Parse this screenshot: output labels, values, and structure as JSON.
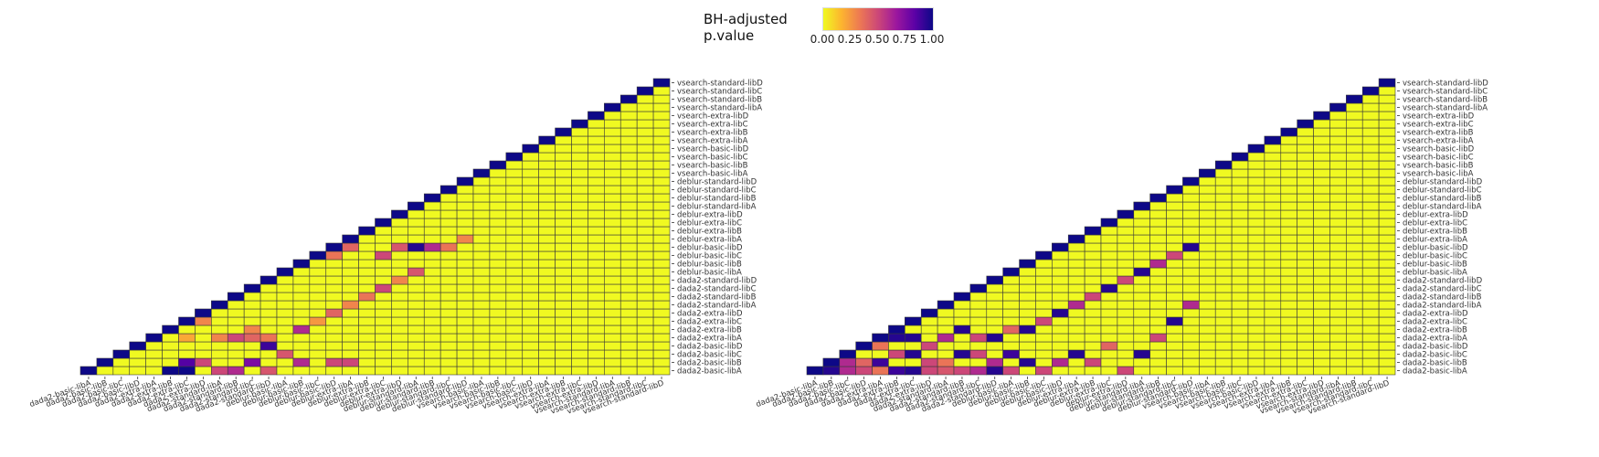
{
  "legend": {
    "title_line1": "BH-adjusted",
    "title_line2": "p.value",
    "ticks": [
      "0.00",
      "0.25",
      "0.50",
      "0.75",
      "1.00"
    ],
    "color_scale": [
      "#f0f921",
      "#fdb42f",
      "#ed7953",
      "#cc4778",
      "#9c179e",
      "#5c01a6",
      "#0d0887"
    ]
  },
  "chart_data": [
    {
      "type": "heatmap",
      "layout": "lower-triangular",
      "labels": [
        "dada2-basic-libA",
        "dada2-basic-libB",
        "dada2-basic-libC",
        "dada2-basic-libD",
        "dada2-extra-libA",
        "dada2-extra-libB",
        "dada2-extra-libC",
        "dada2-extra-libD",
        "dada2-standard-libA",
        "dada2-standard-libB",
        "dada2-standard-libC",
        "dada2-standard-libD",
        "deblur-basic-libA",
        "deblur-basic-libB",
        "deblur-basic-libC",
        "deblur-basic-libD",
        "deblur-extra-libA",
        "deblur-extra-libB",
        "deblur-extra-libC",
        "deblur-extra-libD",
        "deblur-standard-libA",
        "deblur-standard-libB",
        "deblur-standard-libC",
        "deblur-standard-libD",
        "vsearch-basic-libA",
        "vsearch-basic-libB",
        "vsearch-basic-libC",
        "vsearch-basic-libD",
        "vsearch-extra-libA",
        "vsearch-extra-libB",
        "vsearch-extra-libC",
        "vsearch-extra-libD",
        "vsearch-standard-libA",
        "vsearch-standard-libB",
        "vsearch-standard-libC",
        "vsearch-standard-libD"
      ],
      "diagonal_value": 1.0,
      "default_value": 0.0,
      "cells": [
        [
          5,
          0,
          1.0
        ],
        [
          6,
          0,
          1.0
        ],
        [
          6,
          1,
          0.85
        ],
        [
          7,
          1,
          0.5
        ],
        [
          8,
          0,
          0.5
        ],
        [
          9,
          0,
          0.6
        ],
        [
          10,
          1,
          0.75
        ],
        [
          11,
          0,
          0.45
        ],
        [
          11,
          3,
          0.9
        ],
        [
          10,
          4,
          0.4
        ],
        [
          9,
          4,
          0.5
        ],
        [
          8,
          4,
          0.3
        ],
        [
          11,
          4,
          0.35
        ],
        [
          10,
          5,
          0.3
        ],
        [
          6,
          4,
          0.2
        ],
        [
          7,
          6,
          0.3
        ],
        [
          13,
          1,
          0.6
        ],
        [
          12,
          2,
          0.45
        ],
        [
          15,
          1,
          0.5
        ],
        [
          16,
          1,
          0.5
        ],
        [
          13,
          5,
          0.6
        ],
        [
          14,
          6,
          0.25
        ],
        [
          15,
          7,
          0.4
        ],
        [
          16,
          8,
          0.3
        ],
        [
          17,
          9,
          0.35
        ],
        [
          18,
          10,
          0.5
        ],
        [
          19,
          11,
          0.3
        ],
        [
          20,
          12,
          0.45
        ],
        [
          9,
          12,
          0.4
        ],
        [
          7,
          12,
          0.35
        ],
        [
          11,
          13,
          0.95
        ],
        [
          12,
          13,
          0.3
        ],
        [
          15,
          14,
          0.35
        ],
        [
          16,
          15,
          0.4
        ],
        [
          18,
          14,
          0.5
        ],
        [
          19,
          15,
          0.45
        ],
        [
          20,
          15,
          0.95
        ],
        [
          21,
          15,
          0.6
        ],
        [
          22,
          15,
          0.35
        ],
        [
          23,
          16,
          0.3
        ],
        [
          10,
          17,
          0.95
        ],
        [
          11,
          17,
          0.45
        ],
        [
          9,
          18,
          0.5
        ],
        [
          8,
          17,
          0.3
        ],
        [
          13,
          18,
          0.95
        ],
        [
          14,
          18,
          0.5
        ],
        [
          18,
          19,
          0.3
        ],
        [
          19,
          20,
          0.6
        ],
        [
          20,
          20,
          0.5
        ],
        [
          10,
          20,
          0.3
        ],
        [
          21,
          21,
          0.9
        ],
        [
          22,
          23,
          0.5
        ],
        [
          23,
          24,
          0.5
        ],
        [
          24,
          25,
          0.8
        ],
        [
          17,
          24,
          0.5
        ],
        [
          18,
          25,
          0.9
        ],
        [
          19,
          24,
          0.35
        ],
        [
          20,
          25,
          0.3
        ],
        [
          9,
          28,
          0.4
        ],
        [
          11,
          28,
          0.5
        ],
        [
          12,
          28,
          0.3
        ],
        [
          14,
          28,
          0.5
        ],
        [
          16,
          28,
          0.6
        ],
        [
          18,
          29,
          0.3
        ],
        [
          20,
          29,
          0.95
        ],
        [
          21,
          29,
          0.35
        ],
        [
          22,
          29,
          0.5
        ],
        [
          23,
          29,
          0.3
        ],
        [
          6,
          29,
          0.4
        ],
        [
          7,
          29,
          0.6
        ],
        [
          5,
          30,
          0.35
        ],
        [
          4,
          30,
          0.3
        ],
        [
          8,
          31,
          0.35
        ],
        [
          9,
          31,
          0.4
        ],
        [
          10,
          31,
          0.3
        ],
        [
          11,
          30,
          0.35
        ],
        [
          25,
          35,
          0.6
        ],
        [
          26,
          35,
          0.5
        ],
        [
          28,
          33,
          0.4
        ],
        [
          29,
          33,
          0.45
        ],
        [
          30,
          32,
          0.3
        ],
        [
          31,
          35,
          0.9
        ],
        [
          32,
          35,
          0.95
        ],
        [
          33,
          35,
          0.85
        ],
        [
          34,
          35,
          0.3
        ],
        [
          0,
          35,
          0.95
        ],
        [
          1,
          35,
          0.9
        ]
      ]
    },
    {
      "type": "heatmap",
      "layout": "lower-triangular",
      "labels": [
        "dada2-basic-libA",
        "dada2-basic-libB",
        "dada2-basic-libC",
        "dada2-basic-libD",
        "dada2-extra-libA",
        "dada2-extra-libB",
        "dada2-extra-libC",
        "dada2-extra-libD",
        "dada2-standard-libA",
        "dada2-standard-libB",
        "dada2-standard-libC",
        "dada2-standard-libD",
        "deblur-basic-libA",
        "deblur-basic-libB",
        "deblur-basic-libC",
        "deblur-basic-libD",
        "deblur-extra-libA",
        "deblur-extra-libB",
        "deblur-extra-libC",
        "deblur-extra-libD",
        "deblur-standard-libA",
        "deblur-standard-libB",
        "deblur-standard-libC",
        "deblur-standard-libD",
        "vsearch-basic-libA",
        "vsearch-basic-libB",
        "vsearch-basic-libC",
        "vsearch-basic-libD",
        "vsearch-extra-libA",
        "vsearch-extra-libB",
        "vsearch-extra-libC",
        "vsearch-extra-libD",
        "vsearch-standard-libA",
        "vsearch-standard-libB",
        "vsearch-standard-libC",
        "vsearch-standard-libD"
      ],
      "diagonal_value": 1.0,
      "default_value": 0.0,
      "cells": [
        [
          1,
          0,
          0.95
        ],
        [
          2,
          0,
          0.6
        ],
        [
          3,
          0,
          0.5
        ],
        [
          4,
          0,
          0.35
        ],
        [
          5,
          0,
          0.9
        ],
        [
          6,
          0,
          0.95
        ],
        [
          7,
          0,
          0.5
        ],
        [
          8,
          0,
          0.45
        ],
        [
          9,
          0,
          0.5
        ],
        [
          10,
          0,
          0.6
        ],
        [
          11,
          0,
          0.95
        ],
        [
          12,
          0,
          0.5
        ],
        [
          2,
          1,
          0.6
        ],
        [
          3,
          1,
          0.4
        ],
        [
          4,
          1,
          0.9
        ],
        [
          5,
          2,
          0.5
        ],
        [
          6,
          2,
          0.95
        ],
        [
          7,
          1,
          0.5
        ],
        [
          8,
          1,
          0.35
        ],
        [
          9,
          2,
          0.95
        ],
        [
          10,
          2,
          0.5
        ],
        [
          11,
          1,
          0.6
        ],
        [
          12,
          2,
          0.9
        ],
        [
          4,
          3,
          0.35
        ],
        [
          5,
          4,
          0.95
        ],
        [
          6,
          4,
          0.95
        ],
        [
          7,
          3,
          0.5
        ],
        [
          8,
          4,
          0.6
        ],
        [
          9,
          5,
          0.95
        ],
        [
          10,
          4,
          0.5
        ],
        [
          11,
          4,
          0.95
        ],
        [
          12,
          5,
          0.4
        ],
        [
          13,
          1,
          0.95
        ],
        [
          14,
          0,
          0.5
        ],
        [
          15,
          1,
          0.6
        ],
        [
          16,
          2,
          0.95
        ],
        [
          17,
          1,
          0.5
        ],
        [
          18,
          3,
          0.4
        ],
        [
          13,
          5,
          0.95
        ],
        [
          14,
          6,
          0.5
        ],
        [
          15,
          7,
          0.95
        ],
        [
          16,
          8,
          0.6
        ],
        [
          17,
          9,
          0.5
        ],
        [
          18,
          10,
          0.95
        ],
        [
          19,
          0,
          0.5
        ],
        [
          20,
          2,
          0.95
        ],
        [
          21,
          4,
          0.5
        ],
        [
          22,
          6,
          0.95
        ],
        [
          23,
          8,
          0.6
        ],
        [
          19,
          11,
          0.5
        ],
        [
          20,
          12,
          0.95
        ],
        [
          21,
          13,
          0.6
        ],
        [
          22,
          14,
          0.5
        ],
        [
          23,
          15,
          0.95
        ],
        [
          9,
          12,
          0.6
        ],
        [
          10,
          12,
          0.95
        ],
        [
          11,
          13,
          0.5
        ],
        [
          12,
          14,
          0.95
        ],
        [
          13,
          15,
          0.5
        ],
        [
          9,
          16,
          0.95
        ],
        [
          10,
          16,
          0.5
        ],
        [
          11,
          17,
          0.95
        ],
        [
          12,
          17,
          0.6
        ],
        [
          14,
          18,
          0.95
        ],
        [
          15,
          18,
          0.5
        ],
        [
          16,
          19,
          0.95
        ],
        [
          17,
          20,
          0.6
        ],
        [
          18,
          21,
          0.5
        ],
        [
          13,
          21,
          0.95
        ],
        [
          12,
          21,
          0.6
        ],
        [
          11,
          22,
          0.95
        ],
        [
          10,
          22,
          0.5
        ],
        [
          5,
          23,
          0.95
        ],
        [
          6,
          24,
          0.5
        ],
        [
          7,
          25,
          0.6
        ],
        [
          8,
          26,
          0.95
        ],
        [
          4,
          27,
          0.5
        ],
        [
          3,
          27,
          0.95
        ],
        [
          2,
          28,
          0.6
        ],
        [
          1,
          28,
          0.5
        ],
        [
          24,
          30,
          0.95
        ],
        [
          25,
          31,
          0.6
        ],
        [
          26,
          32,
          0.5
        ],
        [
          27,
          33,
          0.95
        ],
        [
          28,
          34,
          0.6
        ],
        [
          29,
          35,
          0.95
        ],
        [
          30,
          35,
          0.5
        ],
        [
          31,
          35,
          0.95
        ],
        [
          32,
          35,
          0.6
        ],
        [
          33,
          35,
          0.95
        ],
        [
          34,
          35,
          0.4
        ],
        [
          24,
          34,
          0.5
        ],
        [
          25,
          33,
          0.95
        ],
        [
          26,
          34,
          0.6
        ],
        [
          27,
          35,
          0.5
        ],
        [
          28,
          32,
          0.95
        ],
        [
          29,
          31,
          0.5
        ],
        [
          0,
          33,
          0.95
        ],
        [
          0,
          34,
          0.6
        ],
        [
          1,
          34,
          0.95
        ],
        [
          2,
          35,
          0.5
        ],
        [
          3,
          35,
          0.95
        ]
      ]
    }
  ]
}
